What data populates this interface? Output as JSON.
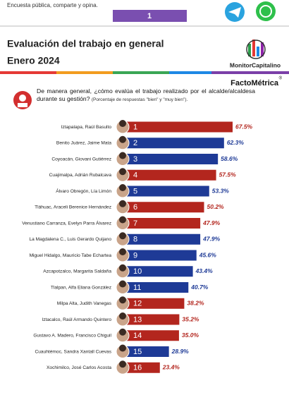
{
  "header": {
    "tagline": "Encuesta pública, comparte y opina.",
    "page": "1",
    "title": "Evaluación del trabajo en general",
    "date": "Enero 2024",
    "logo": "MonitorCapitalino",
    "brand": "FactoMétrica",
    "brand_mark": "®",
    "question": "De manera general, ¿cómo evalúa el trabajo realizado por el alcalde/alcaldesa durante su gestión?",
    "note": "(Porcentaje de respuestas \"bien\" y \"muy bien\")."
  },
  "chart_data": {
    "type": "bar",
    "orientation": "horizontal",
    "categories": [
      "Iztapalapa, Raúl Basulto",
      "Benito Juárez, Jaime Mata",
      "Coyoacán, Giovani Gutiérrez",
      "Cuajimalpa, Adrián Rubalcava",
      "Álvaro Obregón, Lía Limón",
      "Tláhuac, Araceli Berenice Hernández",
      "Venustiano Carranza, Evelyn Parra Álvarez",
      "La Magdalena C., Luis Gerardo Quijano",
      "Miguel Hidalgo, Mauricio Tabe Echartea",
      "Azcapotzalco, Margarita Saldaña",
      "Tlalpan, Alfa Eliana González",
      "Milpa Alta, Judith Vanegas",
      "Iztacalco, Raúl Armando Quintero",
      "Gustavo A. Madero, Francisco Chiguil",
      "Cuauhtémoc, Sandra Xantall Cuevas",
      "Xochimilco, José Carlos Acosta"
    ],
    "ranks": [
      1,
      2,
      3,
      4,
      5,
      6,
      7,
      8,
      9,
      10,
      11,
      12,
      13,
      14,
      15,
      16
    ],
    "values": [
      67.5,
      62.3,
      58.6,
      57.5,
      53.3,
      50.2,
      47.9,
      47.9,
      45.6,
      43.4,
      40.7,
      38.2,
      35.2,
      35.0,
      28.9,
      23.4
    ],
    "value_labels": [
      "67.5%",
      "62.3%",
      "58.6%",
      "57.5%",
      "53.3%",
      "50.2%",
      "47.9%",
      "47.9%",
      "45.6%",
      "43.4%",
      "40.7%",
      "38.2%",
      "35.2%",
      "35.0%",
      "28.9%",
      "23.4%"
    ],
    "colors": [
      "#b3261e",
      "#1e3a96",
      "#1e3a96",
      "#b3261e",
      "#1e3a96",
      "#b3261e",
      "#b3261e",
      "#1e3a96",
      "#1e3a96",
      "#1e3a96",
      "#1e3a96",
      "#b3261e",
      "#b3261e",
      "#b3261e",
      "#1e3a96",
      "#b3261e"
    ]
  }
}
